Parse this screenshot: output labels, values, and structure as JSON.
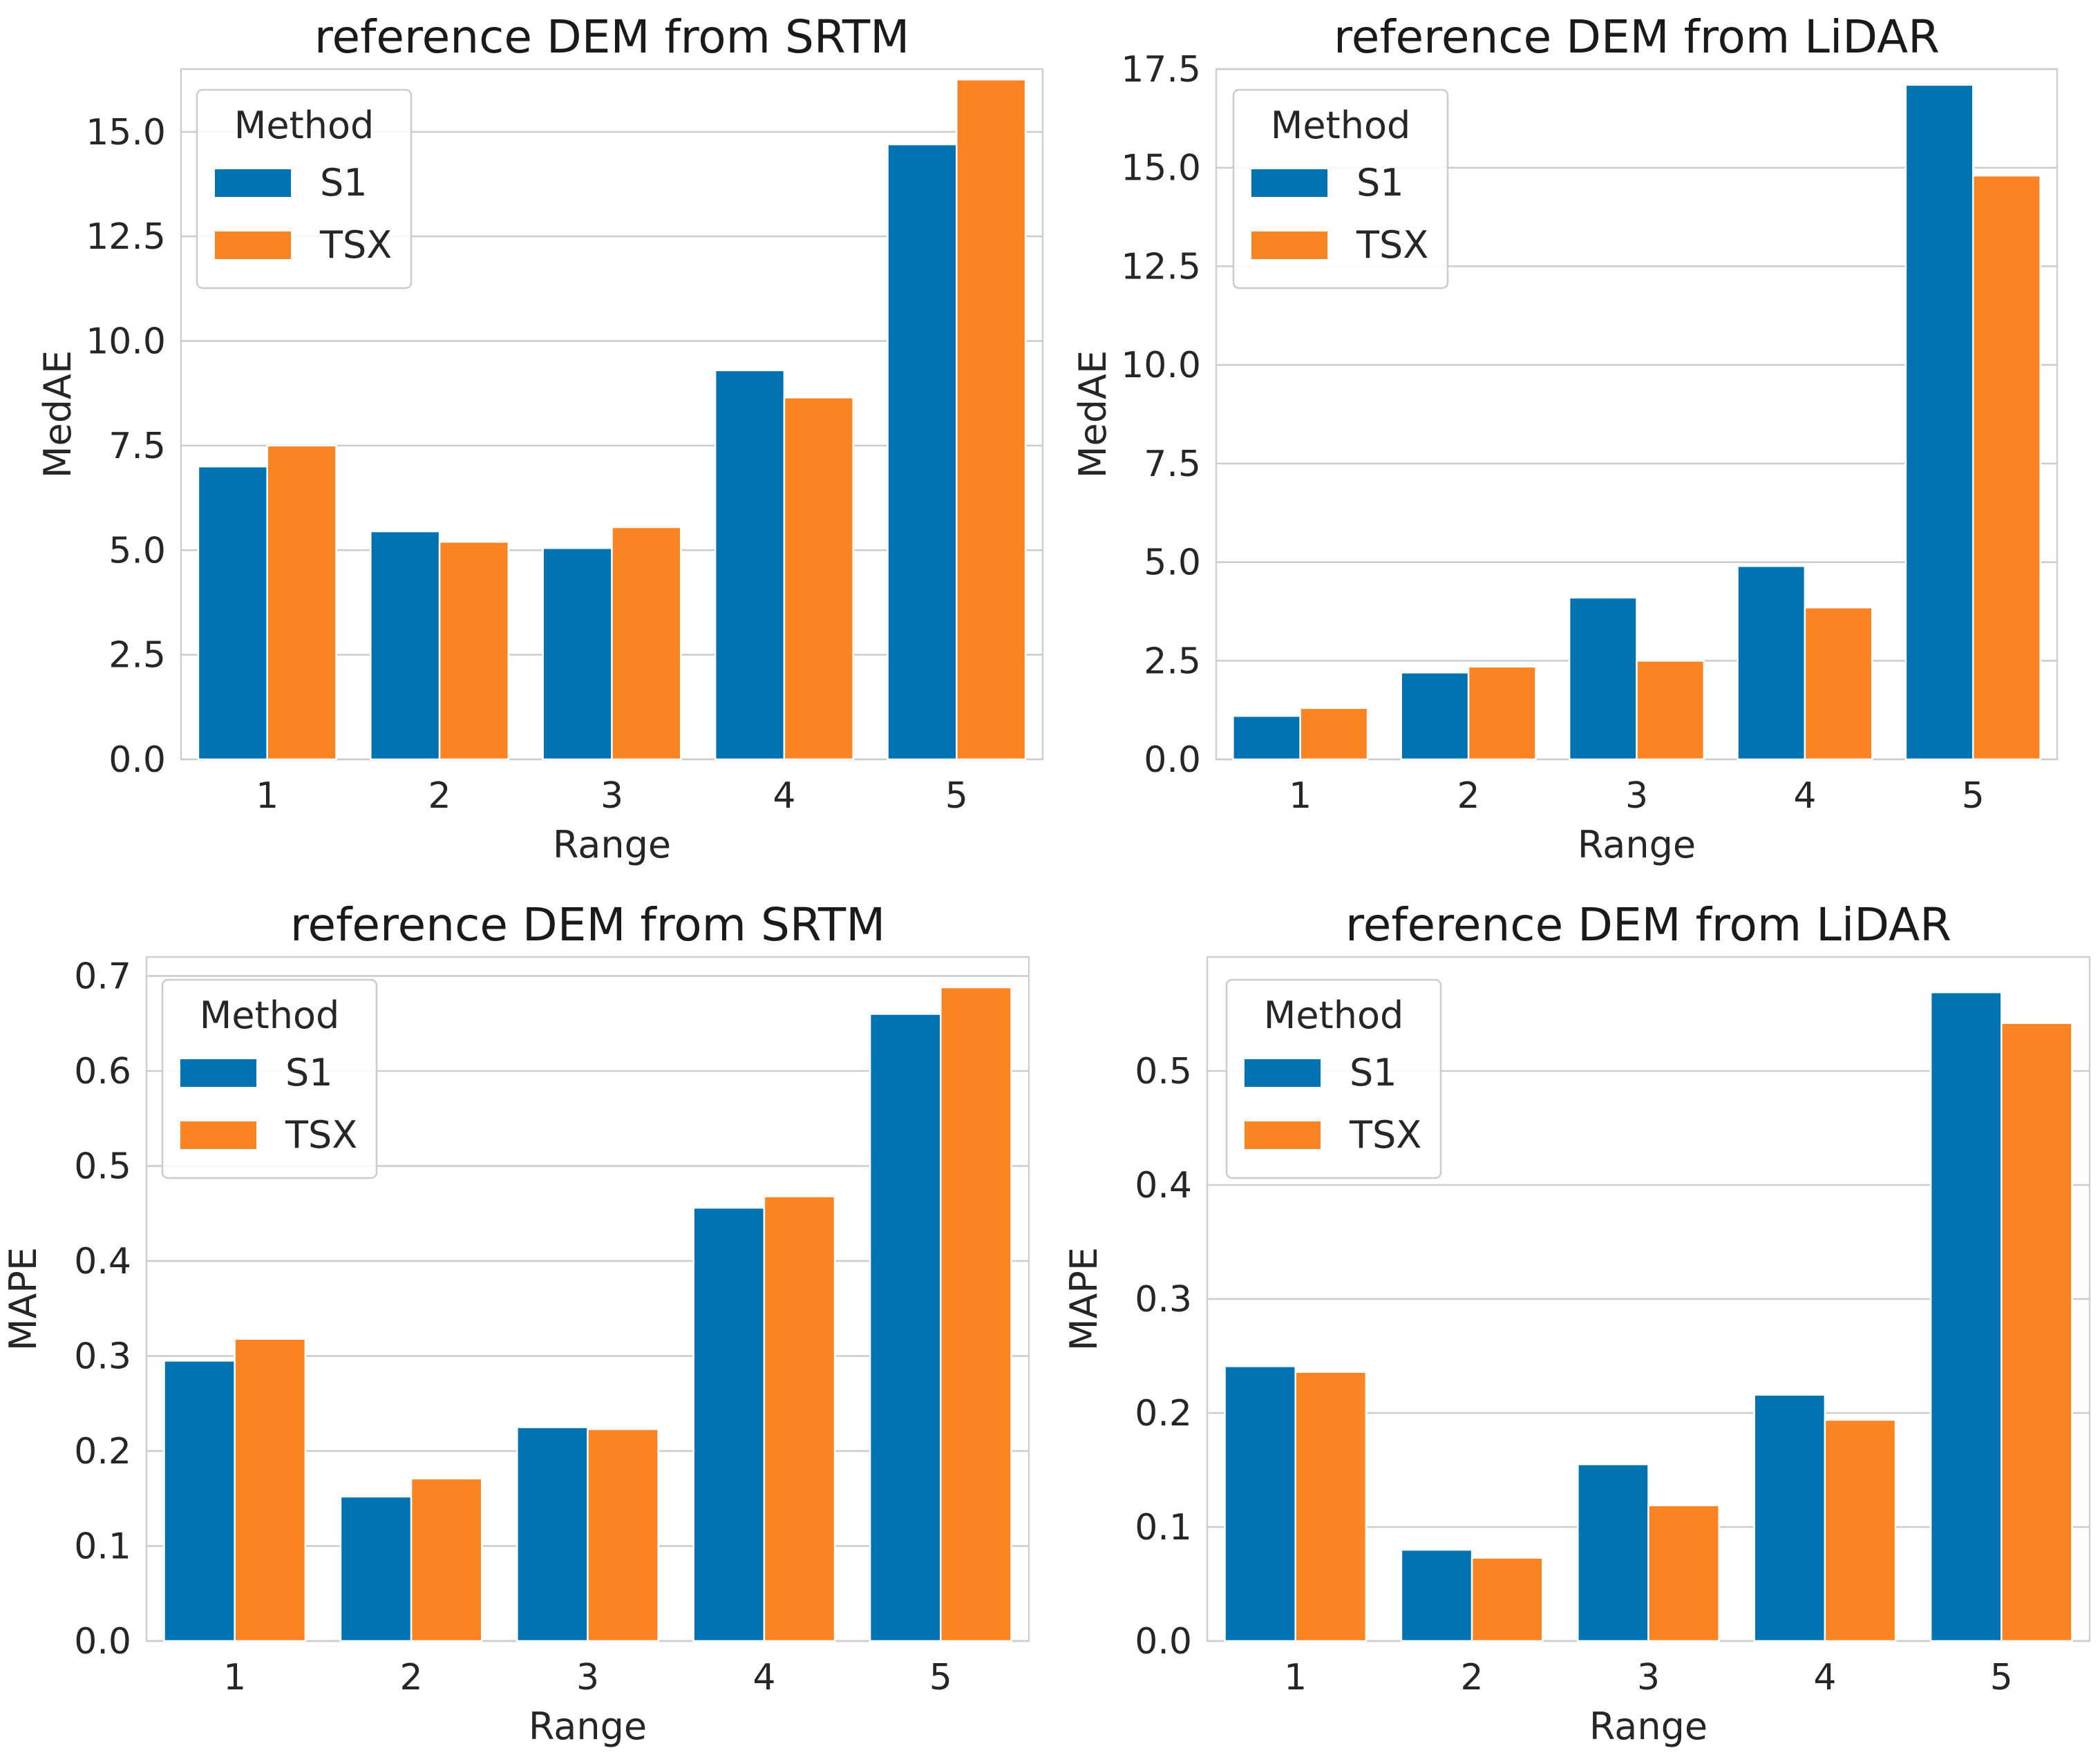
{
  "colors": {
    "S1": "#0173b2",
    "TSX": "#fb8422"
  },
  "chart_data": [
    {
      "type": "bar",
      "title": "reference DEM from SRTM",
      "xlabel": "Range",
      "ylabel": "MedAE",
      "categories": [
        "1",
        "2",
        "3",
        "4",
        "5"
      ],
      "ylim": [
        0,
        16.5
      ],
      "yticks": [
        "0.0",
        "2.5",
        "5.0",
        "7.5",
        "10.0",
        "12.5",
        "15.0"
      ],
      "legend": {
        "title": "Method",
        "position": "top-left"
      },
      "series": [
        {
          "name": "S1",
          "values": [
            7.0,
            5.45,
            5.05,
            9.3,
            14.7
          ]
        },
        {
          "name": "TSX",
          "values": [
            7.5,
            5.2,
            5.55,
            8.65,
            16.25
          ]
        }
      ]
    },
    {
      "type": "bar",
      "title": "reference DEM from LiDAR",
      "xlabel": "Range",
      "ylabel": "MedAE",
      "categories": [
        "1",
        "2",
        "3",
        "4",
        "5"
      ],
      "ylim": [
        0,
        17.5
      ],
      "yticks": [
        "0.0",
        "2.5",
        "5.0",
        "7.5",
        "10.0",
        "12.5",
        "15.0",
        "17.5"
      ],
      "legend": {
        "title": "Method",
        "position": "top-left"
      },
      "series": [
        {
          "name": "S1",
          "values": [
            1.1,
            2.2,
            4.1,
            4.9,
            17.1
          ]
        },
        {
          "name": "TSX",
          "values": [
            1.3,
            2.35,
            2.5,
            3.85,
            14.8
          ]
        }
      ]
    },
    {
      "type": "bar",
      "title": "reference DEM from SRTM",
      "xlabel": "Range",
      "ylabel": "MAPE",
      "categories": [
        "1",
        "2",
        "3",
        "4",
        "5"
      ],
      "ylim": [
        0,
        0.72
      ],
      "yticks": [
        "0.0",
        "0.1",
        "0.2",
        "0.3",
        "0.4",
        "0.5",
        "0.6",
        "0.7"
      ],
      "legend": {
        "title": "Method",
        "position": "top-left"
      },
      "series": [
        {
          "name": "S1",
          "values": [
            0.295,
            0.152,
            0.225,
            0.456,
            0.66
          ]
        },
        {
          "name": "TSX",
          "values": [
            0.318,
            0.171,
            0.223,
            0.468,
            0.688
          ]
        }
      ]
    },
    {
      "type": "bar",
      "title": "reference DEM from LiDAR",
      "xlabel": "Range",
      "ylabel": "MAPE",
      "categories": [
        "1",
        "2",
        "3",
        "4",
        "5"
      ],
      "ylim": [
        0,
        0.6
      ],
      "yticks": [
        "0.0",
        "0.1",
        "0.2",
        "0.3",
        "0.4",
        "0.5"
      ],
      "legend": {
        "title": "Method",
        "position": "top-left"
      },
      "series": [
        {
          "name": "S1",
          "values": [
            0.241,
            0.08,
            0.155,
            0.216,
            0.569
          ]
        },
        {
          "name": "TSX",
          "values": [
            0.236,
            0.073,
            0.119,
            0.194,
            0.542
          ]
        }
      ]
    }
  ]
}
